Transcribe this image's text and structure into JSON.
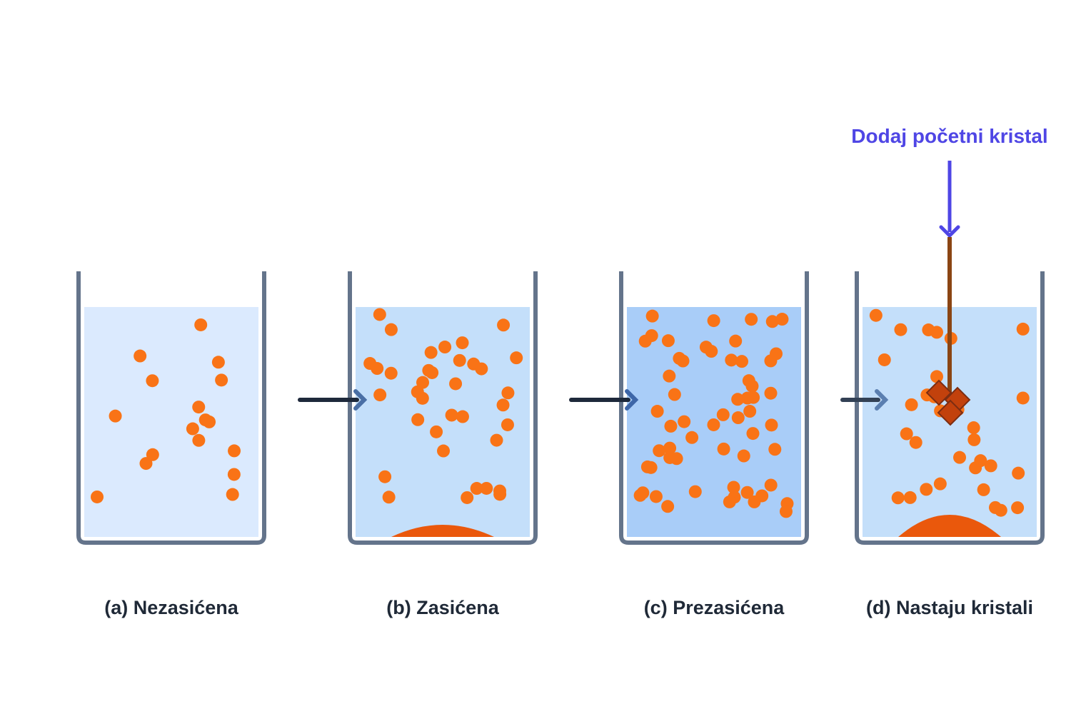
{
  "labels": [
    "(a) Nezasićena",
    "(b) Zasićena",
    "(c) Prezasićena",
    "(d) Nastaju kristali"
  ],
  "annotation": "Dodaj početni kristal"
}
